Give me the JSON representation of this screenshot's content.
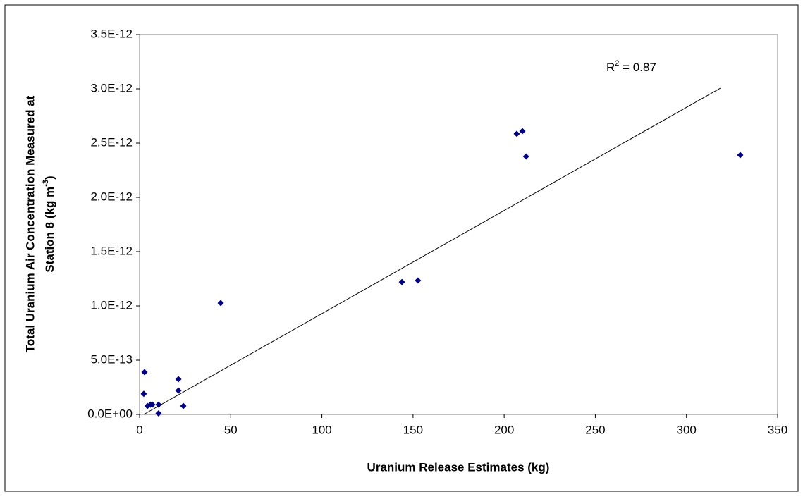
{
  "chart_data": {
    "type": "scatter",
    "x_label": "Uranium Release Estimates (kg)",
    "y_label": {
      "line1": "Total Uranium Air Concentration Measured at",
      "line2": "Station 8 (kg m",
      "line2_sup": "-3",
      "line2_end": ")"
    },
    "annotation": {
      "base": "R",
      "sup": "2",
      "rest": " = 0.87"
    },
    "series": [
      {
        "color": "#000080",
        "x": [
          2.7,
          2.3,
          4.3,
          6,
          7,
          10.4,
          10.4,
          21.3,
          21.3,
          24,
          44.5,
          143.9,
          152.7,
          206.9,
          210,
          212,
          329.5
        ],
        "values": [
          3.9e-13,
          1.9e-13,
          7.8e-14,
          9e-14,
          9e-14,
          9e-14,
          1e-14,
          3.25e-13,
          2.2e-13,
          7.8e-14,
          1.026e-12,
          1.22e-12,
          1.234e-12,
          2.585e-12,
          2.61e-12,
          2.377e-12,
          2.39e-12
        ]
      }
    ],
    "trendline": {
      "color": "#000000",
      "x": [
        2.3,
        318.6
      ],
      "values": [
        0,
        3.006e-12
      ]
    },
    "xlim": [
      0,
      350
    ],
    "xticks": [
      0,
      50,
      100,
      150,
      200,
      250,
      300,
      350
    ],
    "ylim": [
      0,
      3.5e-12
    ],
    "yticks": [
      {
        "value": 0,
        "label": "0.0E+00"
      },
      {
        "value": 5e-13,
        "label": "5.0E-13"
      },
      {
        "value": 1e-12,
        "label": "1.0E-12"
      },
      {
        "value": 1.5e-12,
        "label": "1.5E-12"
      },
      {
        "value": 2e-12,
        "label": "2.0E-12"
      },
      {
        "value": 2.5e-12,
        "label": "2.5E-12"
      },
      {
        "value": 3e-12,
        "label": "3.0E-12"
      },
      {
        "value": 3.5e-12,
        "label": "3.5E-12"
      }
    ],
    "grid": false
  }
}
